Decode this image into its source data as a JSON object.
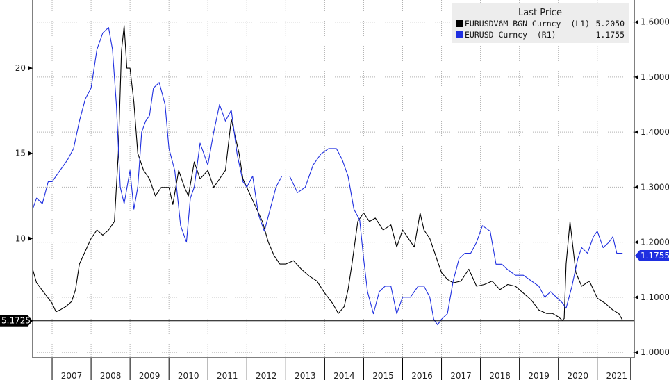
{
  "chart_data": {
    "type": "line",
    "title": "",
    "x_ticks": [
      "2007",
      "2008",
      "2009",
      "2010",
      "2011",
      "2012",
      "2013",
      "2014",
      "2015",
      "2016",
      "2017",
      "2018",
      "2019",
      "2020",
      "2021"
    ],
    "xlim": [
      2006.5,
      2021.95
    ],
    "left_axis": {
      "ylim": [
        3.0,
        24.0
      ],
      "ticks": [
        10,
        15,
        20
      ]
    },
    "right_axis": {
      "ylim": [
        0.99,
        1.64
      ],
      "ticks": [
        "1.0000",
        "1.1000",
        "1.2000",
        "1.3000",
        "1.4000",
        "1.5000",
        "1.6000"
      ]
    },
    "reference_line": {
      "value": 5.1725,
      "label": "5.1725"
    },
    "right_marker_label": "1.1755",
    "colors": {
      "L1": "#000000",
      "R1": "#1f2fe0",
      "ref_label_bg": "#000000",
      "right_label_bg": "#1f2fe0"
    },
    "legend": {
      "title": "Last Price",
      "placement": "top-right",
      "entries": [
        {
          "name": "EURUSDV6M BGN Curncy  (L1)",
          "value": "5.2050",
          "color": "#000000"
        },
        {
          "name": "EURUSD Curncy  (R1)",
          "value": "1.1755",
          "color": "#1f2fe0"
        }
      ]
    },
    "series": [
      {
        "name": "EURUSDV6M BGN Curncy",
        "axis": "left",
        "x": [
          2006.5,
          2006.6,
          2006.8,
          2006.9,
          2007.0,
          2007.1,
          2007.2,
          2007.35,
          2007.5,
          2007.6,
          2007.7,
          2007.8,
          2007.9,
          2008.0,
          2008.15,
          2008.3,
          2008.45,
          2008.6,
          2008.7,
          2008.78,
          2008.85,
          2008.92,
          2009.0,
          2009.1,
          2009.2,
          2009.35,
          2009.5,
          2009.65,
          2009.8,
          2010.0,
          2010.1,
          2010.25,
          2010.4,
          2010.5,
          2010.65,
          2010.8,
          2011.0,
          2011.15,
          2011.3,
          2011.45,
          2011.6,
          2011.7,
          2011.8,
          2011.9,
          2012.0,
          2012.2,
          2012.4,
          2012.55,
          2012.7,
          2012.85,
          2013.0,
          2013.2,
          2013.4,
          2013.6,
          2013.8,
          2014.0,
          2014.2,
          2014.35,
          2014.5,
          2014.6,
          2014.7,
          2014.85,
          2015.0,
          2015.15,
          2015.3,
          2015.5,
          2015.7,
          2015.85,
          2016.0,
          2016.15,
          2016.3,
          2016.45,
          2016.55,
          2016.7,
          2016.85,
          2017.0,
          2017.15,
          2017.3,
          2017.5,
          2017.7,
          2017.9,
          2018.1,
          2018.3,
          2018.5,
          2018.7,
          2018.9,
          2019.1,
          2019.3,
          2019.5,
          2019.7,
          2019.85,
          2020.0,
          2020.1,
          2020.15,
          2020.2,
          2020.3,
          2020.45,
          2020.6,
          2020.8,
          2021.0,
          2021.2,
          2021.4,
          2021.55,
          2021.6,
          2021.65
        ],
        "values": [
          8.2,
          7.4,
          6.8,
          6.5,
          6.2,
          5.7,
          5.8,
          6.0,
          6.3,
          7.0,
          8.5,
          9.0,
          9.5,
          10.0,
          10.5,
          10.2,
          10.5,
          11.0,
          15.0,
          21.0,
          22.5,
          20.0,
          20.0,
          18.0,
          15.0,
          14.0,
          13.5,
          12.5,
          13.0,
          13.0,
          12.0,
          14.0,
          13.0,
          12.5,
          14.5,
          13.5,
          14.0,
          13.0,
          13.5,
          14.0,
          17.0,
          16.0,
          15.0,
          13.5,
          13.0,
          12.0,
          11.0,
          9.8,
          9.0,
          8.5,
          8.5,
          8.7,
          8.2,
          7.8,
          7.5,
          6.8,
          6.2,
          5.6,
          6.0,
          7.0,
          8.5,
          11.0,
          11.5,
          11.0,
          11.2,
          10.5,
          10.8,
          9.5,
          10.5,
          10.0,
          9.5,
          11.5,
          10.5,
          10.0,
          9.0,
          8.0,
          7.6,
          7.4,
          7.5,
          8.2,
          7.2,
          7.3,
          7.5,
          7.0,
          7.3,
          7.2,
          6.8,
          6.4,
          5.8,
          5.6,
          5.6,
          5.4,
          5.2,
          5.3,
          8.5,
          11.0,
          8.0,
          7.2,
          7.5,
          6.5,
          6.2,
          5.8,
          5.6,
          5.4,
          5.2
        ]
      },
      {
        "name": "EURUSD Curncy",
        "axis": "right",
        "x": [
          2006.5,
          2006.6,
          2006.75,
          2006.9,
          2007.0,
          2007.2,
          2007.4,
          2007.55,
          2007.7,
          2007.85,
          2008.0,
          2008.15,
          2008.3,
          2008.45,
          2008.55,
          2008.65,
          2008.75,
          2008.85,
          2009.0,
          2009.1,
          2009.2,
          2009.3,
          2009.4,
          2009.5,
          2009.6,
          2009.75,
          2009.9,
          2010.0,
          2010.15,
          2010.3,
          2010.45,
          2010.55,
          2010.65,
          2010.8,
          2011.0,
          2011.15,
          2011.3,
          2011.45,
          2011.6,
          2011.75,
          2011.9,
          2012.0,
          2012.15,
          2012.3,
          2012.45,
          2012.6,
          2012.75,
          2012.9,
          2013.1,
          2013.3,
          2013.5,
          2013.7,
          2013.9,
          2014.1,
          2014.3,
          2014.45,
          2014.6,
          2014.75,
          2014.9,
          2015.0,
          2015.1,
          2015.25,
          2015.4,
          2015.55,
          2015.7,
          2015.85,
          2016.0,
          2016.2,
          2016.4,
          2016.55,
          2016.7,
          2016.8,
          2016.9,
          2017.0,
          2017.15,
          2017.3,
          2017.45,
          2017.6,
          2017.75,
          2017.9,
          2018.05,
          2018.25,
          2018.4,
          2018.55,
          2018.7,
          2018.9,
          2019.1,
          2019.3,
          2019.5,
          2019.65,
          2019.8,
          2019.95,
          2020.1,
          2020.2,
          2020.35,
          2020.5,
          2020.6,
          2020.75,
          2020.9,
          2021.0,
          2021.15,
          2021.3,
          2021.4,
          2021.5,
          2021.65
        ],
        "values": [
          1.26,
          1.28,
          1.27,
          1.31,
          1.31,
          1.33,
          1.35,
          1.37,
          1.42,
          1.46,
          1.48,
          1.55,
          1.58,
          1.59,
          1.55,
          1.45,
          1.3,
          1.27,
          1.33,
          1.26,
          1.3,
          1.4,
          1.42,
          1.43,
          1.48,
          1.49,
          1.45,
          1.37,
          1.33,
          1.23,
          1.2,
          1.28,
          1.3,
          1.38,
          1.34,
          1.4,
          1.45,
          1.42,
          1.44,
          1.36,
          1.31,
          1.3,
          1.32,
          1.25,
          1.22,
          1.26,
          1.3,
          1.32,
          1.32,
          1.29,
          1.3,
          1.34,
          1.36,
          1.37,
          1.37,
          1.35,
          1.32,
          1.26,
          1.24,
          1.17,
          1.11,
          1.07,
          1.11,
          1.12,
          1.12,
          1.07,
          1.1,
          1.1,
          1.12,
          1.12,
          1.1,
          1.06,
          1.05,
          1.06,
          1.07,
          1.13,
          1.17,
          1.18,
          1.18,
          1.2,
          1.23,
          1.22,
          1.16,
          1.16,
          1.15,
          1.14,
          1.14,
          1.13,
          1.12,
          1.1,
          1.11,
          1.1,
          1.09,
          1.08,
          1.12,
          1.17,
          1.19,
          1.18,
          1.21,
          1.22,
          1.19,
          1.2,
          1.21,
          1.18,
          1.18
        ]
      }
    ]
  }
}
